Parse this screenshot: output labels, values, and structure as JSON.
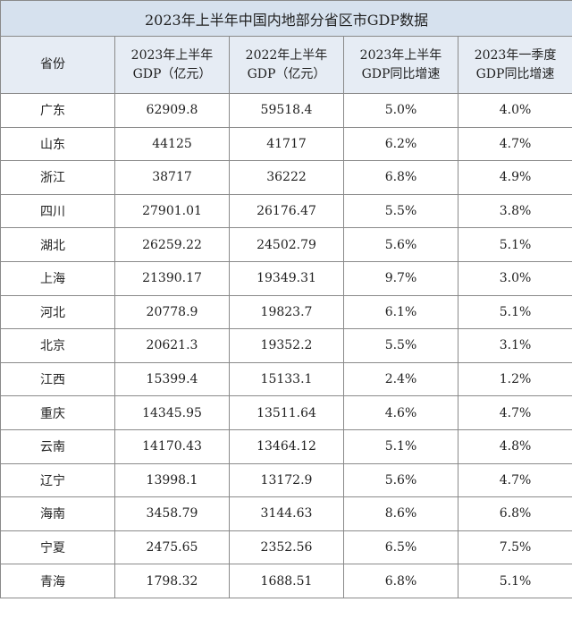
{
  "title": "2023年上半年中国内地部分省区市GDP数据",
  "headers": [
    {
      "line1": "省份",
      "line2": ""
    },
    {
      "line1": "2023年上半年",
      "line2": "GDP（亿元）"
    },
    {
      "line1": "2022年上半年",
      "line2": "GDP（亿元）"
    },
    {
      "line1": "2023年上半年",
      "line2": "GDP同比增速"
    },
    {
      "line1": "2023年一季度",
      "line2": "GDP同比增速"
    }
  ],
  "rows": [
    [
      "广东",
      "62909.8",
      "59518.4",
      "5.0%",
      "4.0%"
    ],
    [
      "山东",
      "44125",
      "41717",
      "6.2%",
      "4.7%"
    ],
    [
      "浙江",
      "38717",
      "36222",
      "6.8%",
      "4.9%"
    ],
    [
      "四川",
      "27901.01",
      "26176.47",
      "5.5%",
      "3.8%"
    ],
    [
      "湖北",
      "26259.22",
      "24502.79",
      "5.6%",
      "5.1%"
    ],
    [
      "上海",
      "21390.17",
      "19349.31",
      "9.7%",
      "3.0%"
    ],
    [
      "河北",
      "20778.9",
      "19823.7",
      "6.1%",
      "5.1%"
    ],
    [
      "北京",
      "20621.3",
      "19352.2",
      "5.5%",
      "3.1%"
    ],
    [
      "江西",
      "15399.4",
      "15133.1",
      "2.4%",
      "1.2%"
    ],
    [
      "重庆",
      "14345.95",
      "13511.64",
      "4.6%",
      "4.7%"
    ],
    [
      "云南",
      "14170.43",
      "13464.12",
      "5.1%",
      "4.8%"
    ],
    [
      "辽宁",
      "13998.1",
      "13172.9",
      "5.6%",
      "4.7%"
    ],
    [
      "海南",
      "3458.79",
      "3144.63",
      "8.6%",
      "6.8%"
    ],
    [
      "宁夏",
      "2475.65",
      "2352.56",
      "6.5%",
      "7.5%"
    ],
    [
      "青海",
      "1798.32",
      "1688.51",
      "6.8%",
      "5.1%"
    ]
  ]
}
